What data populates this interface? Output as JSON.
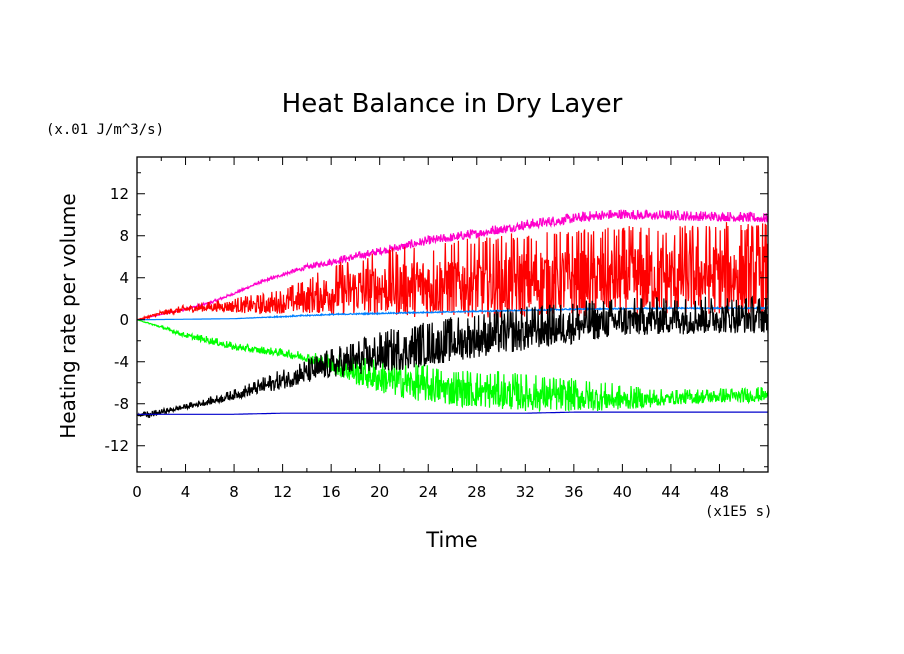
{
  "chart_data": {
    "type": "line",
    "title": "Heat Balance in Dry Layer",
    "xlabel": "Time",
    "ylabel": "Heating rate per volume",
    "x_unit": "(x1E5 s)",
    "y_unit": "(x.01 J/m^3/s)",
    "xlim": [
      0,
      52
    ],
    "ylim": [
      -14.5,
      15.5
    ],
    "xticks": [
      "0",
      "4",
      "8",
      "12",
      "16",
      "20",
      "24",
      "28",
      "32",
      "36",
      "40",
      "44",
      "48"
    ],
    "yticks": [
      "12",
      "8",
      "4",
      "0",
      "-4",
      "-8",
      "-12"
    ],
    "grid": false,
    "legend": "none",
    "series": [
      {
        "color": "#ff00cc",
        "x": [
          0,
          2,
          4,
          6,
          8,
          10,
          12,
          14,
          16,
          18,
          20,
          22,
          24,
          26,
          28,
          30,
          32,
          34,
          36,
          38,
          40,
          42,
          44,
          46,
          48,
          50,
          52
        ],
        "y": [
          0,
          0.5,
          1.0,
          1.6,
          2.5,
          3.5,
          4.3,
          5.0,
          5.5,
          6.0,
          6.5,
          7.0,
          7.5,
          7.8,
          8.2,
          8.6,
          9.0,
          9.3,
          9.6,
          9.9,
          10.0,
          9.9,
          9.9,
          9.8,
          9.8,
          9.7,
          9.6
        ],
        "noise": [
          0,
          0,
          0.1,
          0.1,
          0.1,
          0.1,
          0.15,
          0.2,
          0.3,
          0.3,
          0.3,
          0.35,
          0.35,
          0.35,
          0.4,
          0.4,
          0.4,
          0.4,
          0.4,
          0.4,
          0.4,
          0.4,
          0.4,
          0.4,
          0.4,
          0.4,
          0.4
        ]
      },
      {
        "color": "#ff0000",
        "x": [
          0,
          2,
          4,
          6,
          8,
          10,
          12,
          14,
          16,
          18,
          20,
          22,
          24,
          26,
          28,
          30,
          32,
          34,
          36,
          38,
          40,
          42,
          44,
          46,
          48,
          50,
          52
        ],
        "y": [
          0,
          0.6,
          1.0,
          1.2,
          1.3,
          1.3,
          1.6,
          2.0,
          2.5,
          2.8,
          3.0,
          3.1,
          3.2,
          3.3,
          3.4,
          3.5,
          3.6,
          3.7,
          3.8,
          3.8,
          3.9,
          4.0,
          4.0,
          4.1,
          4.2,
          4.2,
          4.3
        ],
        "noise": [
          0,
          0.2,
          0.3,
          0.4,
          0.6,
          0.8,
          1.0,
          1.4,
          2.0,
          2.4,
          2.6,
          2.8,
          3.0,
          3.0,
          3.2,
          3.3,
          3.4,
          3.4,
          3.5,
          3.5,
          3.6,
          3.6,
          3.6,
          3.7,
          3.7,
          3.7,
          3.7
        ]
      },
      {
        "color": "#0080ff",
        "x": [
          0,
          4,
          8,
          12,
          16,
          20,
          24,
          28,
          32,
          36,
          40,
          44,
          48,
          52
        ],
        "y": [
          0,
          0.05,
          0.1,
          0.3,
          0.5,
          0.6,
          0.7,
          0.8,
          0.9,
          1.0,
          1.05,
          1.1,
          1.1,
          1.1
        ],
        "noise": [
          0,
          0,
          0,
          0.05,
          0.05,
          0.05,
          0.05,
          0.05,
          0.05,
          0.05,
          0.05,
          0.05,
          0.05,
          0.05
        ]
      },
      {
        "color": "#00ff00",
        "x": [
          0,
          2,
          4,
          6,
          8,
          10,
          12,
          14,
          16,
          18,
          20,
          22,
          24,
          26,
          28,
          30,
          32,
          34,
          36,
          38,
          40,
          42,
          44,
          46,
          48,
          50,
          52
        ],
        "y": [
          0,
          -0.7,
          -1.5,
          -2.0,
          -2.6,
          -2.9,
          -3.2,
          -3.6,
          -4.3,
          -5.0,
          -5.6,
          -6.0,
          -6.4,
          -6.7,
          -6.9,
          -7.0,
          -7.2,
          -7.3,
          -7.4,
          -7.5,
          -7.6,
          -7.6,
          -7.5,
          -7.4,
          -7.3,
          -7.3,
          -7.2
        ],
        "noise": [
          0,
          0.1,
          0.2,
          0.3,
          0.3,
          0.3,
          0.3,
          0.4,
          0.8,
          1.2,
          1.4,
          1.5,
          1.5,
          1.5,
          1.5,
          1.5,
          1.5,
          1.4,
          1.3,
          1.2,
          1.0,
          0.8,
          0.6,
          0.6,
          0.6,
          0.6,
          0.6
        ]
      },
      {
        "color": "#000000",
        "x": [
          0,
          1,
          2,
          4,
          6,
          8,
          10,
          12,
          14,
          16,
          18,
          20,
          22,
          24,
          26,
          28,
          30,
          32,
          34,
          36,
          38,
          40,
          42,
          44,
          46,
          48,
          50,
          52
        ],
        "y": [
          -9.0,
          -9.1,
          -8.8,
          -8.3,
          -7.8,
          -7.2,
          -6.5,
          -5.8,
          -5.1,
          -4.4,
          -3.9,
          -3.4,
          -3.0,
          -2.6,
          -2.2,
          -1.8,
          -1.5,
          -1.2,
          -0.9,
          -0.6,
          -0.3,
          -0.1,
          0.0,
          0.1,
          0.1,
          0.2,
          0.2,
          0.2
        ],
        "noise": [
          0.1,
          0.3,
          0.2,
          0.2,
          0.3,
          0.4,
          0.6,
          0.8,
          1.0,
          1.2,
          1.4,
          1.6,
          1.8,
          1.8,
          1.8,
          1.8,
          1.8,
          1.8,
          1.7,
          1.7,
          1.6,
          1.6,
          1.5,
          1.5,
          1.5,
          1.5,
          1.5,
          1.5
        ]
      },
      {
        "color": "#0000cc",
        "x": [
          0,
          4,
          8,
          12,
          16,
          20,
          24,
          28,
          32,
          36,
          40,
          44,
          48,
          52
        ],
        "y": [
          -9.0,
          -9.0,
          -9.0,
          -8.9,
          -8.9,
          -8.9,
          -8.9,
          -8.9,
          -8.9,
          -8.8,
          -8.8,
          -8.8,
          -8.8,
          -8.8
        ],
        "noise": [
          0,
          0,
          0,
          0,
          0,
          0,
          0,
          0,
          0,
          0,
          0,
          0,
          0,
          0
        ]
      }
    ]
  }
}
